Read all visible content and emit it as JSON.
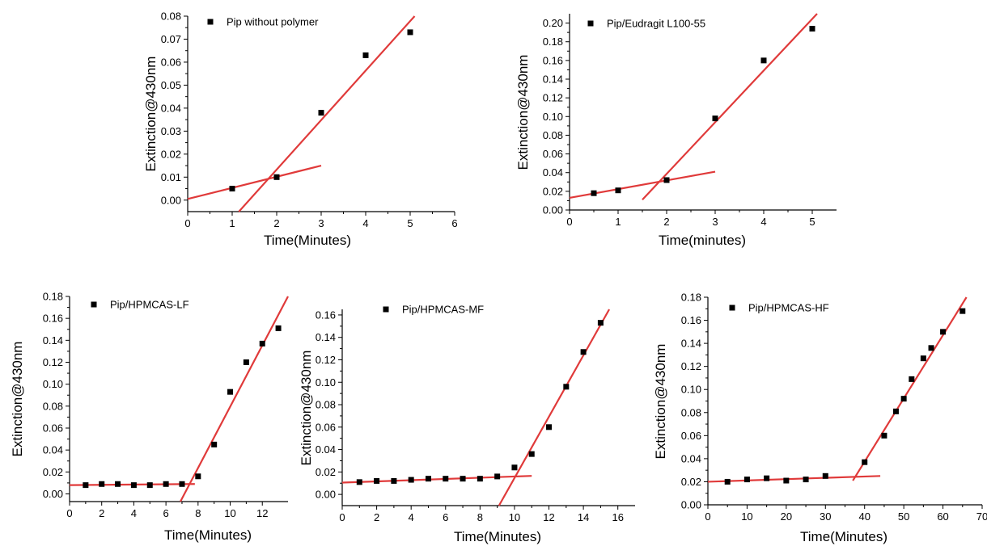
{
  "chart_data": [
    {
      "id": "p1",
      "type": "scatter",
      "xlabel": "Time(Minutes)",
      "ylabel": "Extinction@430nm",
      "xlim": [
        0,
        6
      ],
      "ylim": [
        -0.005,
        0.08
      ],
      "xticks": [
        0,
        1,
        2,
        3,
        4,
        5,
        6
      ],
      "yticks": [
        0.0,
        0.01,
        0.02,
        0.03,
        0.04,
        0.05,
        0.06,
        0.07,
        0.08
      ],
      "ytick_decimals": 2,
      "legend_placement": "top-left",
      "series": [
        {
          "name": "Pip without polymer",
          "points": [
            [
              1,
              0.005
            ],
            [
              2,
              0.01
            ],
            [
              3,
              0.038
            ],
            [
              4,
              0.063
            ],
            [
              5,
              0.073
            ]
          ]
        }
      ],
      "fit_lines": [
        {
          "from": [
            0,
            0.0005
          ],
          "to": [
            3,
            0.015
          ]
        },
        {
          "from": [
            1.15,
            -0.005
          ],
          "to": [
            5.1,
            0.08
          ]
        }
      ],
      "colors": {
        "marker": "#000000",
        "fit": "#e03a3a"
      }
    },
    {
      "id": "p2",
      "type": "scatter",
      "xlabel": "Time(minutes)",
      "ylabel": "Extinction@430nm",
      "xlim": [
        0,
        5.5
      ],
      "ylim": [
        0,
        0.21
      ],
      "xticks": [
        0,
        1,
        2,
        3,
        4,
        5
      ],
      "yticks": [
        0.0,
        0.02,
        0.04,
        0.06,
        0.08,
        0.1,
        0.12,
        0.14,
        0.16,
        0.18,
        0.2
      ],
      "ytick_decimals": 2,
      "legend_placement": "top-left",
      "series": [
        {
          "name": "Pip/Eudragit L100-55",
          "points": [
            [
              0.5,
              0.018
            ],
            [
              1,
              0.021
            ],
            [
              2,
              0.032
            ],
            [
              3,
              0.098
            ],
            [
              4,
              0.16
            ],
            [
              5,
              0.194
            ]
          ]
        }
      ],
      "fit_lines": [
        {
          "from": [
            0,
            0.013
          ],
          "to": [
            3,
            0.041
          ]
        },
        {
          "from": [
            1.5,
            0.011
          ],
          "to": [
            5.1,
            0.21
          ]
        }
      ],
      "colors": {
        "marker": "#000000",
        "fit": "#e03a3a"
      }
    },
    {
      "id": "p3",
      "type": "scatter",
      "xlabel": "Time(Minutes)",
      "ylabel": "Extinction@430nm",
      "xlim": [
        0,
        13.6
      ],
      "ylim": [
        -0.007,
        0.18
      ],
      "xticks": [
        0,
        2,
        4,
        6,
        8,
        10,
        12
      ],
      "yticks": [
        0.0,
        0.02,
        0.04,
        0.06,
        0.08,
        0.1,
        0.12,
        0.14,
        0.16,
        0.18
      ],
      "ytick_decimals": 2,
      "legend_placement": "top-left",
      "series": [
        {
          "name": "Pip/HPMCAS-LF",
          "points": [
            [
              1,
              0.008
            ],
            [
              2,
              0.009
            ],
            [
              3,
              0.009
            ],
            [
              4,
              0.008
            ],
            [
              5,
              0.008
            ],
            [
              6,
              0.009
            ],
            [
              7,
              0.009
            ],
            [
              8,
              0.016
            ],
            [
              9,
              0.045
            ],
            [
              10,
              0.093
            ],
            [
              11,
              0.12
            ],
            [
              12,
              0.137
            ],
            [
              13,
              0.151
            ]
          ]
        }
      ],
      "fit_lines": [
        {
          "from": [
            0,
            0.008
          ],
          "to": [
            7.8,
            0.009
          ]
        },
        {
          "from": [
            6.9,
            -0.007
          ],
          "to": [
            13.6,
            0.18
          ]
        }
      ],
      "colors": {
        "marker": "#000000",
        "fit": "#e03a3a"
      }
    },
    {
      "id": "p4",
      "type": "scatter",
      "xlabel": "Time(Minutes)",
      "ylabel": "Extinction@430nm",
      "xlim": [
        0,
        17
      ],
      "ylim": [
        -0.01,
        0.165
      ],
      "xticks": [
        0,
        2,
        4,
        6,
        8,
        10,
        12,
        14,
        16
      ],
      "yticks": [
        0.0,
        0.02,
        0.04,
        0.06,
        0.08,
        0.1,
        0.12,
        0.14,
        0.16
      ],
      "ytick_decimals": 2,
      "legend_placement": "top-left",
      "series": [
        {
          "name": "Pip/HPMCAS-MF",
          "points": [
            [
              1,
              0.011
            ],
            [
              2,
              0.012
            ],
            [
              3,
              0.012
            ],
            [
              4,
              0.013
            ],
            [
              5,
              0.014
            ],
            [
              6,
              0.014
            ],
            [
              7,
              0.014
            ],
            [
              8,
              0.014
            ],
            [
              9,
              0.016
            ],
            [
              10,
              0.024
            ],
            [
              11,
              0.036
            ],
            [
              12,
              0.06
            ],
            [
              13,
              0.096
            ],
            [
              14,
              0.127
            ],
            [
              15,
              0.153
            ]
          ]
        }
      ],
      "fit_lines": [
        {
          "from": [
            0,
            0.0105
          ],
          "to": [
            11,
            0.0165
          ]
        },
        {
          "from": [
            9.1,
            -0.01
          ],
          "to": [
            15.5,
            0.165
          ]
        }
      ],
      "colors": {
        "marker": "#000000",
        "fit": "#e03a3a"
      }
    },
    {
      "id": "p5",
      "type": "scatter",
      "xlabel": "Time(Minutes)",
      "ylabel": "Extinction@430nm",
      "xlim": [
        0,
        70
      ],
      "ylim": [
        0,
        0.18
      ],
      "xticks": [
        0,
        10,
        20,
        30,
        40,
        50,
        60,
        70
      ],
      "yticks": [
        0.0,
        0.02,
        0.04,
        0.06,
        0.08,
        0.1,
        0.12,
        0.14,
        0.16,
        0.18
      ],
      "ytick_decimals": 2,
      "legend_placement": "top-left",
      "series": [
        {
          "name": "Pip/HPMCAS-HF",
          "points": [
            [
              5,
              0.02
            ],
            [
              10,
              0.022
            ],
            [
              15,
              0.023
            ],
            [
              20,
              0.021
            ],
            [
              25,
              0.022
            ],
            [
              30,
              0.025
            ],
            [
              40,
              0.037
            ],
            [
              45,
              0.06
            ],
            [
              48,
              0.081
            ],
            [
              50,
              0.092
            ],
            [
              52,
              0.109
            ],
            [
              55,
              0.127
            ],
            [
              57,
              0.136
            ],
            [
              60,
              0.15
            ],
            [
              65,
              0.168
            ]
          ]
        }
      ],
      "fit_lines": [
        {
          "from": [
            0,
            0.02
          ],
          "to": [
            44,
            0.025
          ]
        },
        {
          "from": [
            37,
            0.021
          ],
          "to": [
            66,
            0.18
          ]
        }
      ],
      "colors": {
        "marker": "#000000",
        "fit": "#e03a3a"
      }
    }
  ]
}
